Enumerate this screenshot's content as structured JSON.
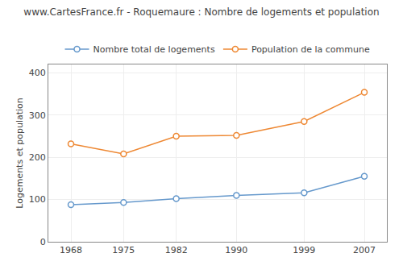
{
  "chart_data": {
    "type": "line",
    "title": "www.CartesFrance.fr - Roquemaure : Nombre de logements et population",
    "ylabel": "Logements et population",
    "x": [
      1968,
      1975,
      1982,
      1990,
      1999,
      2007
    ],
    "series": [
      {
        "name": "Nombre total de logements",
        "color": "#6699cc",
        "values": [
          88,
          93,
          102,
          110,
          116,
          155
        ]
      },
      {
        "name": "Population de la commune",
        "color": "#ee8833",
        "values": [
          232,
          208,
          250,
          252,
          285,
          354
        ]
      }
    ],
    "xlim": [
      1965,
      2010
    ],
    "xticks": [
      1968,
      1975,
      1982,
      1990,
      1999,
      2007
    ],
    "ylim": [
      0,
      420
    ],
    "yticks": [
      0,
      100,
      200,
      300,
      400
    ],
    "grid": true,
    "legend": "top",
    "marker": "circle"
  }
}
